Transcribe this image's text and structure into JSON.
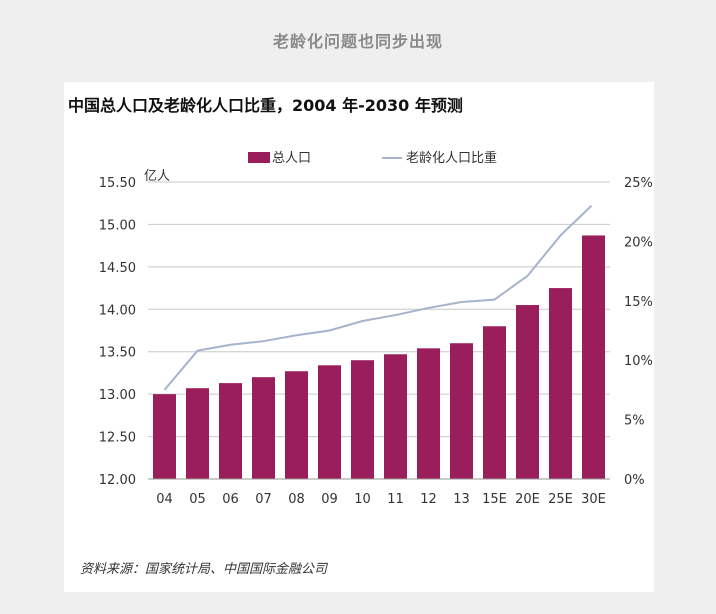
{
  "page": {
    "heading": "老龄化问题也同步出现"
  },
  "chart": {
    "source": "资料来源：国家统计局、中国国际金融公司"
  },
  "chart_data": {
    "type": "bar",
    "title": "中国总人口及老龄化人口比重，2004 年-2030 年预测",
    "ylabel": "亿人",
    "categories": [
      "04",
      "05",
      "06",
      "07",
      "08",
      "09",
      "10",
      "11",
      "12",
      "13",
      "15E",
      "20E",
      "25E",
      "30E"
    ],
    "ylim": [
      12.0,
      15.5
    ],
    "yticks": [
      "12.00",
      "12.50",
      "13.00",
      "13.50",
      "14.00",
      "14.50",
      "15.00",
      "15.50"
    ],
    "y2lim": [
      0,
      25
    ],
    "y2ticks": [
      "0%",
      "5%",
      "10%",
      "15%",
      "20%",
      "25%"
    ],
    "grid": true,
    "legend_position": "top",
    "series": [
      {
        "name": "总人口",
        "type": "bar",
        "axis": "left",
        "color": "#9b1e5c",
        "values": [
          13.0,
          13.07,
          13.13,
          13.2,
          13.27,
          13.34,
          13.4,
          13.47,
          13.54,
          13.6,
          13.8,
          14.05,
          14.25,
          14.87
        ]
      },
      {
        "name": "老龄化人口比重",
        "type": "line",
        "axis": "right",
        "color": "#a5b3cc",
        "values": [
          7.5,
          10.8,
          11.3,
          11.6,
          12.1,
          12.5,
          13.3,
          13.8,
          14.4,
          14.9,
          15.1,
          17.1,
          23.0,
          null
        ],
        "note": "line ends between 25E and 30E"
      }
    ]
  }
}
